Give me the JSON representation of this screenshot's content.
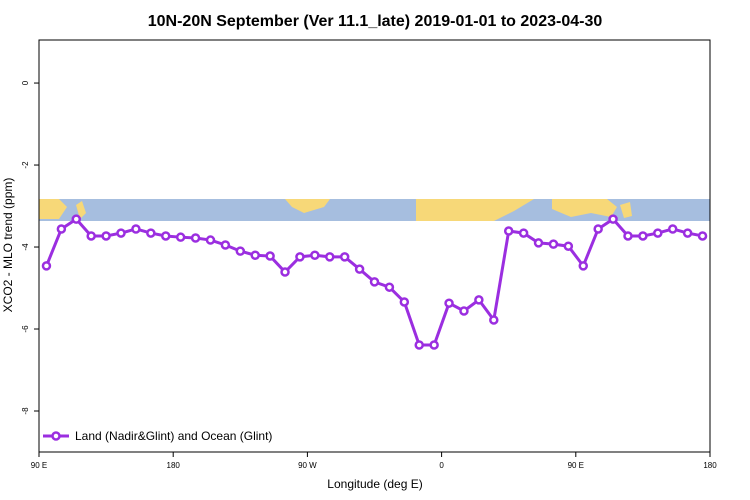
{
  "chart_data": {
    "type": "line",
    "title": "10N-20N September (Ver 11.1_late)   2019-01-01 to 2023-04-30",
    "x_label": "Longitude (deg E)",
    "y_label": "XCO2 - MLO trend (ppm)",
    "xlim": [
      90,
      540
    ],
    "xticks": [
      {
        "value": 90,
        "label": "90 E"
      },
      {
        "value": 180,
        "label": "180"
      },
      {
        "value": 270,
        "label": "90 W"
      },
      {
        "value": 360,
        "label": "0"
      },
      {
        "value": 450,
        "label": "90 E"
      },
      {
        "value": 540,
        "label": "180"
      }
    ],
    "ylim": [
      -9,
      1.05
    ],
    "yticks": [
      0,
      -2,
      -4,
      -6,
      -8
    ],
    "legend_position": "bottom-left",
    "x": [
      95,
      105,
      115,
      125,
      135,
      145,
      155,
      165,
      175,
      185,
      195,
      205,
      215,
      225,
      235,
      245,
      255,
      265,
      275,
      285,
      295,
      305,
      315,
      325,
      335,
      345,
      355,
      365,
      375,
      385,
      395,
      405,
      415,
      425,
      435,
      445,
      455,
      465,
      475,
      485,
      495,
      505,
      515,
      525,
      535
    ],
    "series": [
      {
        "name": "Land (Nadir&Glint) and Ocean (Glint)",
        "color": "#9b2ee0",
        "values": [
          -4.46,
          -3.56,
          -3.32,
          -3.73,
          -3.73,
          -3.66,
          -3.56,
          -3.66,
          -3.73,
          -3.76,
          -3.78,
          -3.83,
          -3.95,
          -4.1,
          -4.2,
          -4.22,
          -4.61,
          -4.24,
          -4.2,
          -4.24,
          -4.24,
          -4.54,
          -4.85,
          -4.98,
          -5.34,
          -6.39,
          -6.39,
          -5.37,
          -5.56,
          -5.29,
          -5.78,
          -3.61,
          -3.66,
          -3.9,
          -3.93,
          -3.98,
          -4.46,
          -3.56,
          -3.32,
          -3.73,
          -3.73,
          -3.66,
          -3.56,
          -3.66,
          -3.73
        ]
      }
    ]
  }
}
